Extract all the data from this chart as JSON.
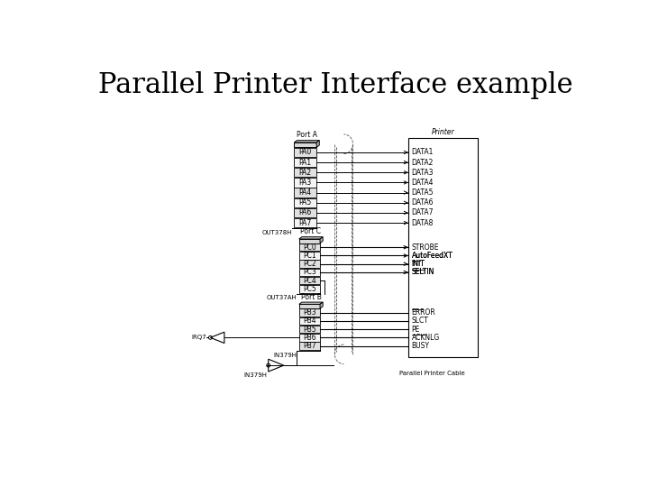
{
  "title": "Parallel Printer Interface example",
  "title_fontsize": 22,
  "title_font": "serif",
  "bg_color": "#ffffff",
  "port_a_label": "Port A",
  "port_a_pins": [
    "PA0",
    "PA1",
    "PA2",
    "PA3",
    "PA4",
    "PA5",
    "PA6",
    "PA7"
  ],
  "port_a_out_label": "OUT378H",
  "port_c_label": "Port C",
  "port_c_pins": [
    "PC0",
    "PC1",
    "PC2",
    "PC3",
    "PC4",
    "PC5"
  ],
  "port_c_out_label": "OUT37AH",
  "port_b_label": "Port B",
  "port_b_pins": [
    "PB3",
    "PB4",
    "PB5",
    "PB6",
    "PB7"
  ],
  "port_b_in_label": "IN379H",
  "printer_label": "Printer",
  "printer_data": [
    "DATA1",
    "DATA2",
    "DATA3",
    "DATA4",
    "DATA5",
    "DATA6",
    "DATA7",
    "DATA8"
  ],
  "printer_ctrl_out": [
    "STROBE",
    "AutoFeedXT",
    "INIT",
    "SELTIN"
  ],
  "printer_ctrl_in": [
    "ERROR",
    "SLCT",
    "PE",
    "ACKNLG",
    "BUSY"
  ],
  "irq_label": "IRQ7",
  "cable_label": "Parallel Printer Cable"
}
